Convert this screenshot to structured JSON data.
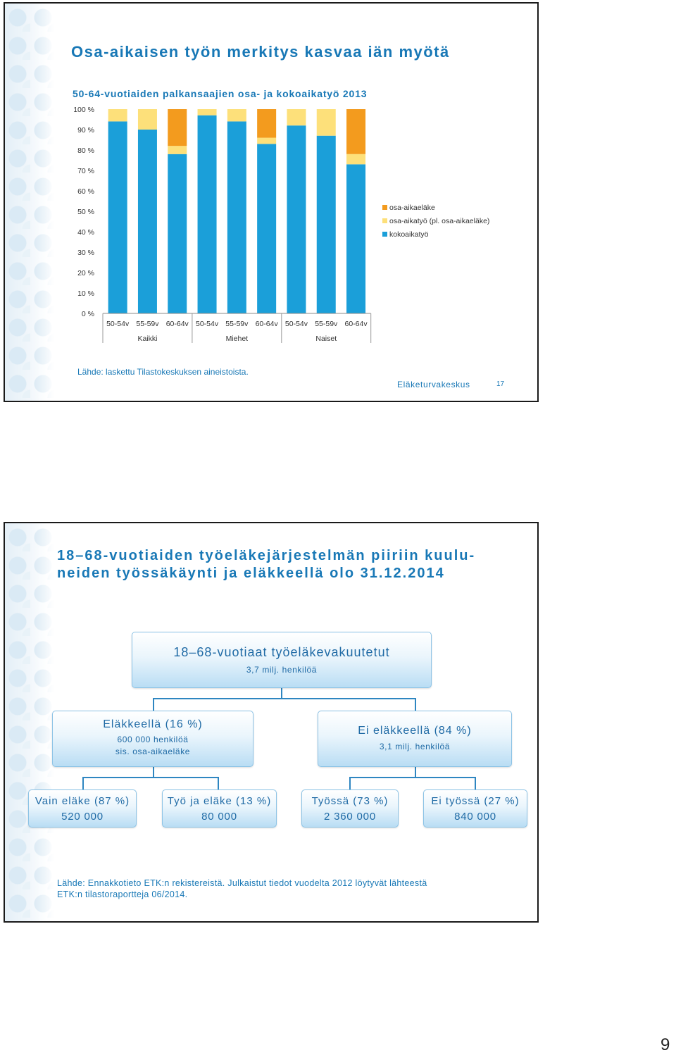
{
  "slide1": {
    "title": "Osa-aikaisen työn merkitys kasvaa iän myötä",
    "source": "Lähde: laskettu Tilastokeskuksen aineistoista.",
    "org": "Eläketurvakeskus",
    "slide_number": "17"
  },
  "chart_data": {
    "type": "bar",
    "stacked": true,
    "title": "50-64-vuotiaiden palkansaajien osa- ja kokoaikatyö 2013",
    "xlabel": "",
    "ylabel": "",
    "ylim": [
      0,
      100
    ],
    "y_ticks": [
      "0 %",
      "10 %",
      "20 %",
      "30 %",
      "40 %",
      "50 %",
      "60 %",
      "70 %",
      "80 %",
      "90 %",
      "100 %"
    ],
    "categories": [
      "50-54v",
      "55-59v",
      "60-64v",
      "50-54v",
      "55-59v",
      "60-64v",
      "50-54v",
      "55-59v",
      "60-64v"
    ],
    "groups": [
      {
        "label": "Kaikki",
        "span": 3
      },
      {
        "label": "Miehet",
        "span": 3
      },
      {
        "label": "Naiset",
        "span": 3
      }
    ],
    "series": [
      {
        "name": "kokoaikatyö",
        "color": "#1b9fd9",
        "values": [
          94,
          90,
          78,
          97,
          94,
          83,
          92,
          87,
          73
        ]
      },
      {
        "name": "osa-aikatyö (pl. osa-aikaeläke)",
        "color": "#fde07a",
        "values": [
          6,
          10,
          4,
          3,
          6,
          3,
          8,
          13,
          5
        ]
      },
      {
        "name": "osa-aikaeläke",
        "color": "#f39b1e",
        "values": [
          0,
          0,
          18,
          0,
          0,
          14,
          0,
          0,
          22
        ]
      }
    ],
    "legend_order": [
      "osa-aikaeläke",
      "osa-aikatyö (pl. osa-aikaeläke)",
      "kokoaikatyö"
    ],
    "legend_position": "right",
    "grid": false
  },
  "slide2": {
    "title": "18–68-vuotiaiden työeläkejärjestelmän piiriin kuulu-neiden työssäkäynti ja eläkkeellä olo 31.12.2014",
    "top": {
      "label": "18–68-vuotiaat työeläkevakuutetut",
      "sub": "3,7 milj. henkilöä"
    },
    "retired": {
      "label": "Eläkkeellä (16 %)",
      "sub": "600 000 henkilöä",
      "sub2": "sis. osa-aikaeläke"
    },
    "not_retired": {
      "label": "Ei eläkkeellä (84 %)",
      "sub": "3,1 milj. henkilöä"
    },
    "leaves": [
      {
        "label": "Vain eläke (87 %)",
        "value": "520 000"
      },
      {
        "label": "Työ ja eläke (13 %)",
        "value": "80 000"
      },
      {
        "label": "Työssä (73 %)",
        "value": "2 360 000"
      },
      {
        "label": "Ei työssä (27 %)",
        "value": "840 000"
      }
    ],
    "source_line1": "Lähde: Ennakkotieto ETK:n rekistereistä. Julkaistut tiedot vuodelta 2012 löytyvät lähteestä",
    "source_line2": "ETK:n tilastoraportteja 06/2014."
  },
  "page_number": "9"
}
